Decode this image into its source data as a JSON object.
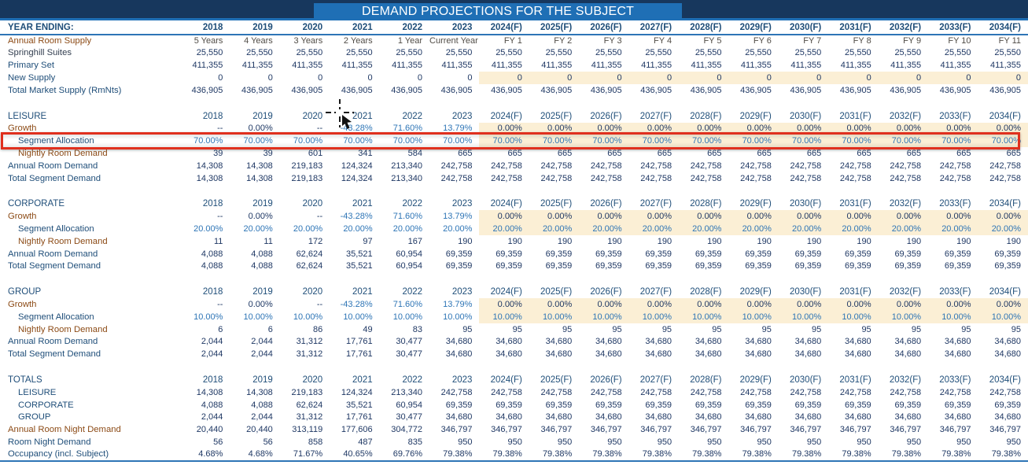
{
  "title": "DEMAND PROJECTIONS FOR THE SUBJECT",
  "year_header": {
    "label": "YEAR ENDING:",
    "years": [
      "2018",
      "2019",
      "2020",
      "2021",
      "2022",
      "2023",
      "2024(F)",
      "2025(F)",
      "2026(F)",
      "2027(F)",
      "2028(F)",
      "2029(F)",
      "2030(F)",
      "2031(F)",
      "2032(F)",
      "2033(F)",
      "2034(F)"
    ]
  },
  "row_labels": {
    "growth": "Growth",
    "allocation": "Segment Allocation",
    "nightly": "Nightly Room Demand",
    "annual": "Annual Room Demand",
    "total": "Total Segment Demand"
  },
  "supply_rows": [
    {
      "label": "Annual Room Supply",
      "cls": "supply-hdr",
      "label_style": "brown",
      "values": [
        "5 Years",
        "4 Years",
        "3 Years",
        "2 Years",
        "1 Year",
        "Current Year",
        "FY 1",
        "FY 2",
        "FY 3",
        "FY 4",
        "FY 5",
        "FY 6",
        "FY 7",
        "FY 8",
        "FY 9",
        "FY 10",
        "FY 11"
      ]
    },
    {
      "label": "Springhill Suites",
      "label_style": "slate",
      "values": [
        "25,550",
        "25,550",
        "25,550",
        "25,550",
        "25,550",
        "25,550",
        "25,550",
        "25,550",
        "25,550",
        "25,550",
        "25,550",
        "25,550",
        "25,550",
        "25,550",
        "25,550",
        "25,550",
        "25,550"
      ]
    },
    {
      "label": "Primary Set",
      "values": [
        "411,355",
        "411,355",
        "411,355",
        "411,355",
        "411,355",
        "411,355",
        "411,355",
        "411,355",
        "411,355",
        "411,355",
        "411,355",
        "411,355",
        "411,355",
        "411,355",
        "411,355",
        "411,355",
        "411,355"
      ]
    },
    {
      "label": "New Supply",
      "beige": true,
      "values": [
        "0",
        "0",
        "0",
        "0",
        "0",
        "0",
        "0",
        "0",
        "0",
        "0",
        "0",
        "0",
        "0",
        "0",
        "0",
        "0",
        "0"
      ]
    },
    {
      "label": "Total Market Supply (RmNts)",
      "values": [
        "436,905",
        "436,905",
        "436,905",
        "436,905",
        "436,905",
        "436,905",
        "436,905",
        "436,905",
        "436,905",
        "436,905",
        "436,905",
        "436,905",
        "436,905",
        "436,905",
        "436,905",
        "436,905",
        "436,905"
      ]
    }
  ],
  "segments": [
    {
      "name": "LEISURE",
      "highlighted": true,
      "growth": [
        "--",
        "0.00%",
        "--",
        "-43.28%",
        "71.60%",
        "13.79%",
        "0.00%",
        "0.00%",
        "0.00%",
        "0.00%",
        "0.00%",
        "0.00%",
        "0.00%",
        "0.00%",
        "0.00%",
        "0.00%",
        "0.00%"
      ],
      "allocation": [
        "70.00%",
        "70.00%",
        "70.00%",
        "70.00%",
        "70.00%",
        "70.00%",
        "70.00%",
        "70.00%",
        "70.00%",
        "70.00%",
        "70.00%",
        "70.00%",
        "70.00%",
        "70.00%",
        "70.00%",
        "70.00%",
        "70.00%"
      ],
      "nightly": [
        "39",
        "39",
        "601",
        "341",
        "584",
        "665",
        "665",
        "665",
        "665",
        "665",
        "665",
        "665",
        "665",
        "665",
        "665",
        "665",
        "665"
      ],
      "annual": [
        "14,308",
        "14,308",
        "219,183",
        "124,324",
        "213,340",
        "242,758",
        "242,758",
        "242,758",
        "242,758",
        "242,758",
        "242,758",
        "242,758",
        "242,758",
        "242,758",
        "242,758",
        "242,758",
        "242,758"
      ],
      "total": [
        "14,308",
        "14,308",
        "219,183",
        "124,324",
        "213,340",
        "242,758",
        "242,758",
        "242,758",
        "242,758",
        "242,758",
        "242,758",
        "242,758",
        "242,758",
        "242,758",
        "242,758",
        "242,758",
        "242,758"
      ]
    },
    {
      "name": "CORPORATE",
      "highlighted": false,
      "growth": [
        "--",
        "0.00%",
        "--",
        "-43.28%",
        "71.60%",
        "13.79%",
        "0.00%",
        "0.00%",
        "0.00%",
        "0.00%",
        "0.00%",
        "0.00%",
        "0.00%",
        "0.00%",
        "0.00%",
        "0.00%",
        "0.00%"
      ],
      "allocation": [
        "20.00%",
        "20.00%",
        "20.00%",
        "20.00%",
        "20.00%",
        "20.00%",
        "20.00%",
        "20.00%",
        "20.00%",
        "20.00%",
        "20.00%",
        "20.00%",
        "20.00%",
        "20.00%",
        "20.00%",
        "20.00%",
        "20.00%"
      ],
      "nightly": [
        "11",
        "11",
        "172",
        "97",
        "167",
        "190",
        "190",
        "190",
        "190",
        "190",
        "190",
        "190",
        "190",
        "190",
        "190",
        "190",
        "190"
      ],
      "annual": [
        "4,088",
        "4,088",
        "62,624",
        "35,521",
        "60,954",
        "69,359",
        "69,359",
        "69,359",
        "69,359",
        "69,359",
        "69,359",
        "69,359",
        "69,359",
        "69,359",
        "69,359",
        "69,359",
        "69,359"
      ],
      "total": [
        "4,088",
        "4,088",
        "62,624",
        "35,521",
        "60,954",
        "69,359",
        "69,359",
        "69,359",
        "69,359",
        "69,359",
        "69,359",
        "69,359",
        "69,359",
        "69,359",
        "69,359",
        "69,359",
        "69,359"
      ]
    },
    {
      "name": "GROUP",
      "highlighted": false,
      "growth": [
        "--",
        "0.00%",
        "--",
        "-43.28%",
        "71.60%",
        "13.79%",
        "0.00%",
        "0.00%",
        "0.00%",
        "0.00%",
        "0.00%",
        "0.00%",
        "0.00%",
        "0.00%",
        "0.00%",
        "0.00%",
        "0.00%"
      ],
      "allocation": [
        "10.00%",
        "10.00%",
        "10.00%",
        "10.00%",
        "10.00%",
        "10.00%",
        "10.00%",
        "10.00%",
        "10.00%",
        "10.00%",
        "10.00%",
        "10.00%",
        "10.00%",
        "10.00%",
        "10.00%",
        "10.00%",
        "10.00%"
      ],
      "nightly": [
        "6",
        "6",
        "86",
        "49",
        "83",
        "95",
        "95",
        "95",
        "95",
        "95",
        "95",
        "95",
        "95",
        "95",
        "95",
        "95",
        "95"
      ],
      "annual": [
        "2,044",
        "2,044",
        "31,312",
        "17,761",
        "30,477",
        "34,680",
        "34,680",
        "34,680",
        "34,680",
        "34,680",
        "34,680",
        "34,680",
        "34,680",
        "34,680",
        "34,680",
        "34,680",
        "34,680"
      ],
      "total": [
        "2,044",
        "2,044",
        "31,312",
        "17,761",
        "30,477",
        "34,680",
        "34,680",
        "34,680",
        "34,680",
        "34,680",
        "34,680",
        "34,680",
        "34,680",
        "34,680",
        "34,680",
        "34,680",
        "34,680"
      ]
    }
  ],
  "totals": {
    "name": "TOTALS",
    "rows": [
      {
        "label": "LEISURE",
        "indent": true,
        "values": [
          "14,308",
          "14,308",
          "219,183",
          "124,324",
          "213,340",
          "242,758",
          "242,758",
          "242,758",
          "242,758",
          "242,758",
          "242,758",
          "242,758",
          "242,758",
          "242,758",
          "242,758",
          "242,758",
          "242,758"
        ]
      },
      {
        "label": "CORPORATE",
        "indent": true,
        "values": [
          "4,088",
          "4,088",
          "62,624",
          "35,521",
          "60,954",
          "69,359",
          "69,359",
          "69,359",
          "69,359",
          "69,359",
          "69,359",
          "69,359",
          "69,359",
          "69,359",
          "69,359",
          "69,359",
          "69,359"
        ]
      },
      {
        "label": "GROUP",
        "indent": true,
        "values": [
          "2,044",
          "2,044",
          "31,312",
          "17,761",
          "30,477",
          "34,680",
          "34,680",
          "34,680",
          "34,680",
          "34,680",
          "34,680",
          "34,680",
          "34,680",
          "34,680",
          "34,680",
          "34,680",
          "34,680"
        ]
      },
      {
        "label": "Annual Room Night Demand",
        "label_style": "brown",
        "values": [
          "20,440",
          "20,440",
          "313,119",
          "177,606",
          "304,772",
          "346,797",
          "346,797",
          "346,797",
          "346,797",
          "346,797",
          "346,797",
          "346,797",
          "346,797",
          "346,797",
          "346,797",
          "346,797",
          "346,797"
        ]
      },
      {
        "label": "Room Night Demand",
        "values": [
          "56",
          "56",
          "858",
          "487",
          "835",
          "950",
          "950",
          "950",
          "950",
          "950",
          "950",
          "950",
          "950",
          "950",
          "950",
          "950",
          "950"
        ]
      },
      {
        "label": "Occupancy (incl. Subject)",
        "values": [
          "4.68%",
          "4.68%",
          "71.67%",
          "40.65%",
          "69.76%",
          "79.38%",
          "79.38%",
          "79.38%",
          "79.38%",
          "79.38%",
          "79.38%",
          "79.38%",
          "79.38%",
          "79.38%",
          "79.38%",
          "79.38%",
          "79.38%"
        ]
      }
    ]
  },
  "annotations": {
    "highlighted_row": "LEISURE Segment Allocation",
    "highlight_color": "#E0301E",
    "cursor": "crosshair-with-arrow"
  },
  "colors": {
    "title_bar_dark": "#17375D",
    "title_bar_light": "#1F6FB5",
    "forecast_beige": "#FBEFD5",
    "label_navy": "#1F4E79",
    "number_navy": "#1F3864",
    "value_blue": "#2E75B6",
    "label_brown": "#8C4B16"
  }
}
